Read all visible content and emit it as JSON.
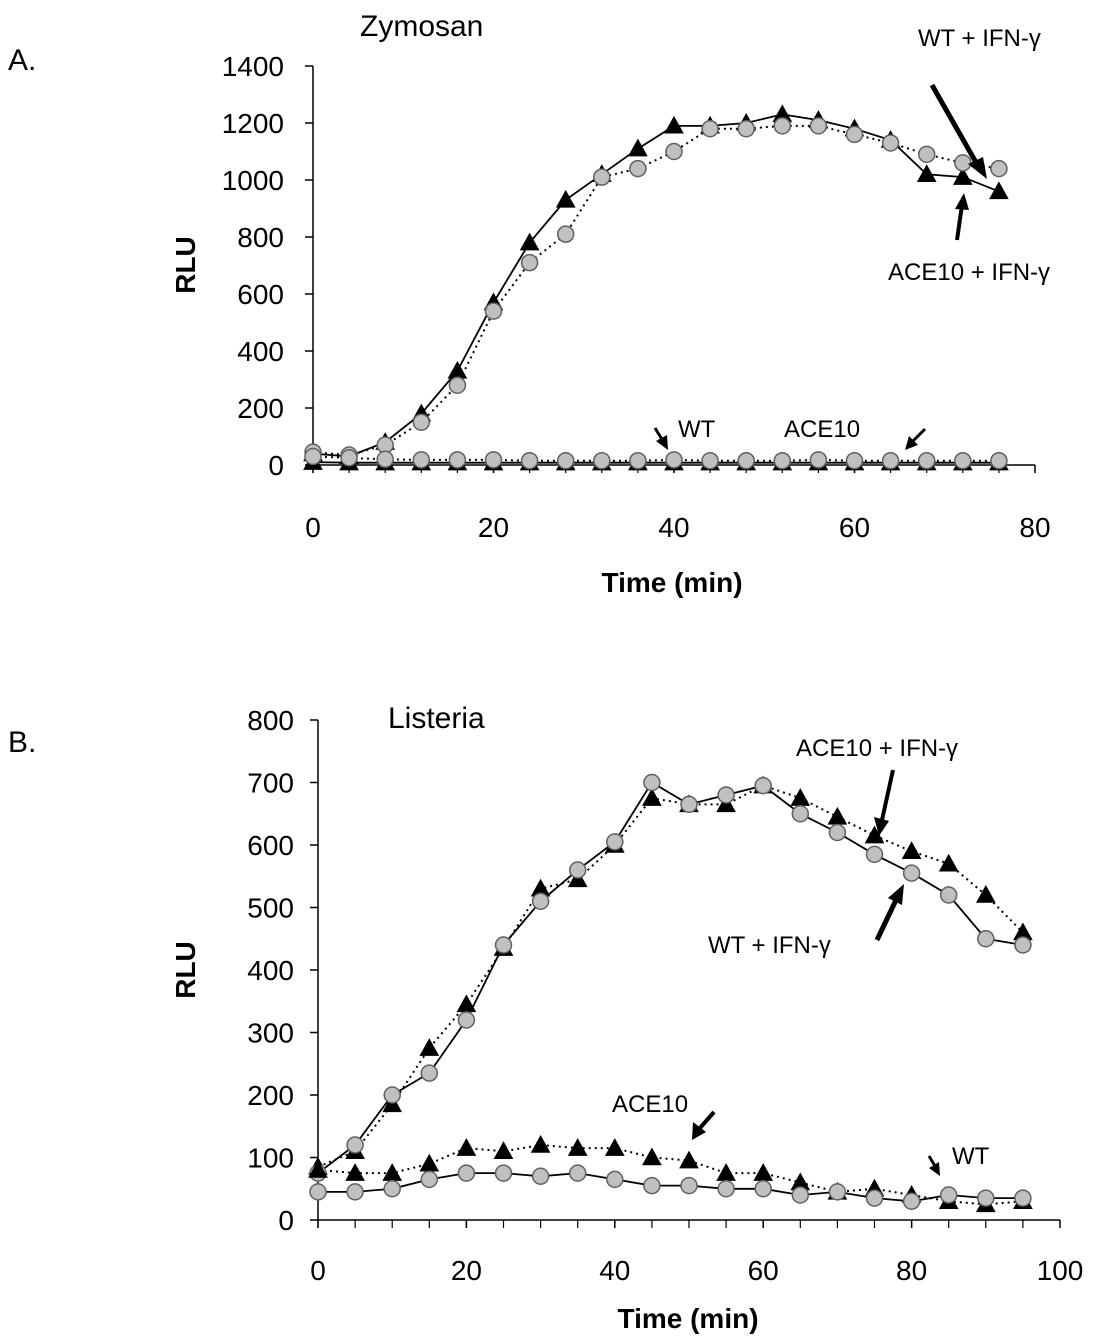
{
  "chart_data": [
    {
      "panel_label": "A.",
      "type": "line",
      "title": "Zymosan",
      "xlabel": "Time (min)",
      "ylabel": "RLU",
      "xlim": [
        0,
        80
      ],
      "ylim": [
        0,
        1400
      ],
      "xticks": [
        0,
        20,
        40,
        60,
        80
      ],
      "yticks": [
        0,
        200,
        400,
        600,
        800,
        1000,
        1200,
        1400
      ],
      "x": [
        0,
        4,
        8,
        12,
        16,
        20,
        24,
        28,
        32,
        36,
        40,
        44,
        48,
        52,
        56,
        60,
        64,
        68,
        72,
        76
      ],
      "series": [
        {
          "name": "ACE10 + IFN-γ",
          "marker": "triangle",
          "line": "solid",
          "values": [
            40,
            30,
            80,
            180,
            330,
            570,
            780,
            930,
            1020,
            1110,
            1190,
            1190,
            1200,
            1230,
            1210,
            1180,
            1140,
            1020,
            1010,
            960
          ]
        },
        {
          "name": "WT + IFN-γ",
          "marker": "circle",
          "line": "dotted",
          "values": [
            45,
            35,
            70,
            150,
            280,
            540,
            710,
            810,
            1010,
            1040,
            1100,
            1180,
            1180,
            1190,
            1190,
            1160,
            1130,
            1090,
            1060,
            1040
          ]
        },
        {
          "name": "ACE10",
          "marker": "triangle",
          "line": "solid",
          "values": [
            10,
            8,
            8,
            8,
            8,
            8,
            8,
            8,
            8,
            8,
            8,
            8,
            8,
            8,
            8,
            8,
            8,
            8,
            8,
            8
          ]
        },
        {
          "name": "WT",
          "marker": "circle",
          "line": "dotted",
          "values": [
            30,
            25,
            20,
            18,
            18,
            18,
            15,
            15,
            15,
            15,
            18,
            15,
            15,
            15,
            18,
            15,
            15,
            15,
            15,
            15
          ]
        }
      ],
      "annotations": [
        "WT + IFN-γ",
        "ACE10 + IFN-γ",
        "WT",
        "ACE10"
      ]
    },
    {
      "panel_label": "B.",
      "type": "line",
      "title": "Listeria",
      "xlabel": "Time (min)",
      "ylabel": "RLU",
      "xlim": [
        0,
        100
      ],
      "ylim": [
        0,
        800
      ],
      "xticks": [
        0,
        20,
        40,
        60,
        80,
        100
      ],
      "yticks": [
        0,
        100,
        200,
        300,
        400,
        500,
        600,
        700,
        800
      ],
      "x": [
        0,
        5,
        10,
        15,
        20,
        25,
        30,
        35,
        40,
        45,
        50,
        55,
        60,
        65,
        70,
        75,
        80,
        85,
        90,
        95
      ],
      "series": [
        {
          "name": "ACE10 + IFN-γ",
          "marker": "triangle",
          "line": "dotted",
          "values": [
            85,
            110,
            185,
            275,
            345,
            435,
            530,
            545,
            600,
            675,
            665,
            665,
            695,
            675,
            645,
            615,
            590,
            570,
            520,
            460
          ]
        },
        {
          "name": "WT + IFN-γ",
          "marker": "circle",
          "line": "solid",
          "values": [
            75,
            120,
            200,
            235,
            320,
            440,
            510,
            560,
            605,
            700,
            665,
            680,
            695,
            650,
            620,
            585,
            555,
            520,
            450,
            440
          ]
        },
        {
          "name": "ACE10",
          "marker": "triangle",
          "line": "dotted",
          "values": [
            80,
            75,
            75,
            90,
            115,
            110,
            120,
            115,
            115,
            100,
            95,
            75,
            75,
            60,
            45,
            50,
            40,
            30,
            25,
            30
          ]
        },
        {
          "name": "WT",
          "marker": "circle",
          "line": "solid",
          "values": [
            45,
            45,
            50,
            65,
            75,
            75,
            70,
            75,
            65,
            55,
            55,
            50,
            50,
            40,
            45,
            35,
            30,
            40,
            35,
            35
          ]
        }
      ],
      "annotations": [
        "ACE10 + IFN-γ",
        "WT + IFN-γ",
        "ACE10",
        "WT"
      ]
    }
  ]
}
